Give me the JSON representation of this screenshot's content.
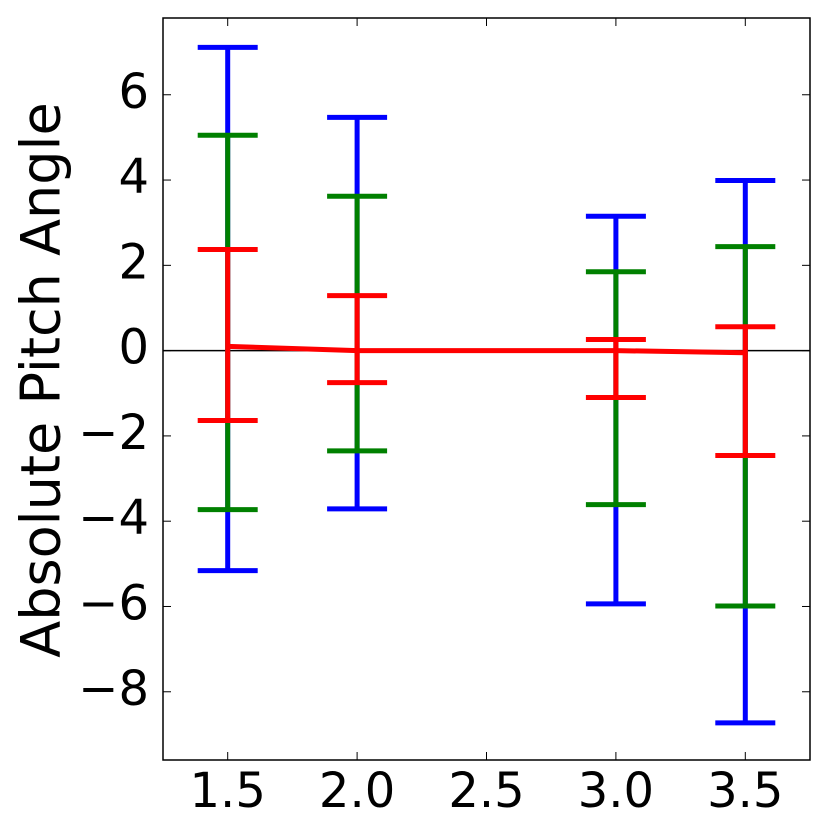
{
  "chart_data": {
    "type": "errorbar",
    "ylabel": "Absolute Pitch Angle",
    "x": [
      1.5,
      2.0,
      3.0,
      3.5
    ],
    "series": [
      {
        "color": "#0000ff",
        "low": [
          -5.16,
          -3.71,
          -5.94,
          -8.73
        ],
        "high": [
          7.11,
          5.47,
          3.15,
          3.99
        ]
      },
      {
        "color": "#008000",
        "low": [
          -3.73,
          -2.35,
          -3.61,
          -5.99
        ],
        "high": [
          5.05,
          3.62,
          1.85,
          2.44
        ]
      },
      {
        "color": "#ff0000",
        "low": [
          -1.64,
          -0.75,
          -1.1,
          -2.46
        ],
        "high": [
          2.37,
          1.29,
          0.26,
          0.56
        ]
      }
    ],
    "line": {
      "color": "#ff0000",
      "values": [
        0.1,
        0,
        0,
        -0.05
      ]
    },
    "hline": 0,
    "xlim": [
      1.25,
      3.75
    ],
    "ylim": [
      -9.6,
      7.8
    ],
    "xticks": [
      {
        "value": 1.5,
        "label": "1.5"
      },
      {
        "value": 2.0,
        "label": "2.0"
      },
      {
        "value": 2.5,
        "label": "2.5"
      },
      {
        "value": 3.0,
        "label": "3.0"
      },
      {
        "value": 3.5,
        "label": "3.5"
      }
    ],
    "yticks": [
      {
        "value": -8,
        "label": "−8"
      },
      {
        "value": -6,
        "label": "−6"
      },
      {
        "value": -4,
        "label": "−4"
      },
      {
        "value": -2,
        "label": "−2"
      },
      0,
      2,
      4,
      6
    ]
  }
}
